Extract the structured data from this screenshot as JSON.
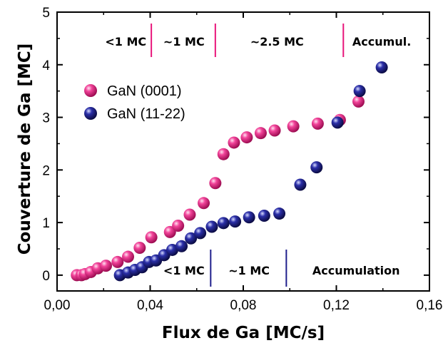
{
  "chart_data": {
    "type": "scatter",
    "xlabel": "Flux de Ga [MC/s]",
    "ylabel": "Couverture de Ga [MC]",
    "xlim": [
      0,
      0.16
    ],
    "ylim": [
      -0.3,
      5
    ],
    "x_ticks": [
      0,
      0.04,
      0.08,
      0.12,
      0.16
    ],
    "x_tick_labels": [
      "0,00",
      "0,04",
      "0,08",
      "0,12",
      "0,16"
    ],
    "y_ticks": [
      0,
      1,
      2,
      3,
      4,
      5
    ],
    "y_tick_labels": [
      "0",
      "1",
      "2",
      "3",
      "4",
      "5"
    ],
    "grid": false,
    "legend_position": "upper-left",
    "series": [
      {
        "name": "GaN (0001)",
        "color": "#e8157a",
        "x": [
          0.0085,
          0.0105,
          0.012,
          0.0145,
          0.0175,
          0.021,
          0.026,
          0.0305,
          0.0355,
          0.0405,
          0.0485,
          0.052,
          0.057,
          0.063,
          0.068,
          0.0715,
          0.076,
          0.0815,
          0.0875,
          0.0935,
          0.1015,
          0.112,
          0.1215,
          0.1295
        ],
        "y": [
          0.0,
          0.0,
          0.02,
          0.06,
          0.13,
          0.18,
          0.25,
          0.35,
          0.52,
          0.72,
          0.82,
          0.94,
          1.15,
          1.37,
          1.75,
          2.3,
          2.52,
          2.62,
          2.7,
          2.75,
          2.83,
          2.88,
          2.95,
          3.3
        ]
      },
      {
        "name": "GaN (11-22)",
        "color": "#1f1f8c",
        "x": [
          0.027,
          0.0305,
          0.0335,
          0.0365,
          0.0395,
          0.0425,
          0.046,
          0.0495,
          0.0535,
          0.0575,
          0.0615,
          0.0665,
          0.0715,
          0.0765,
          0.0825,
          0.089,
          0.0955,
          0.1045,
          0.1115,
          0.1205,
          0.13,
          0.1395
        ],
        "y": [
          0.0,
          0.05,
          0.1,
          0.15,
          0.25,
          0.28,
          0.38,
          0.48,
          0.55,
          0.7,
          0.8,
          0.92,
          0.99,
          1.02,
          1.1,
          1.13,
          1.17,
          1.72,
          2.05,
          2.9,
          3.5,
          3.95
        ]
      }
    ],
    "regions_top": {
      "color": "#e8157a",
      "dividers_x": [
        0.0405,
        0.068,
        0.123
      ],
      "labels": [
        {
          "text": "<1 MC",
          "x": 0.0295
        },
        {
          "text": "~1 MC",
          "x": 0.0545
        },
        {
          "text": "~2.5 MC",
          "x": 0.0945
        },
        {
          "text": "Accumul.",
          "x": 0.1395
        }
      ]
    },
    "regions_bottom": {
      "color": "#1f1f8c",
      "dividers_x": [
        0.066,
        0.0985
      ],
      "labels": [
        {
          "text": "<1 MC",
          "x": 0.0545
        },
        {
          "text": "~1 MC",
          "x": 0.0825
        },
        {
          "text": "Accumulation",
          "x": 0.1285
        }
      ]
    }
  }
}
